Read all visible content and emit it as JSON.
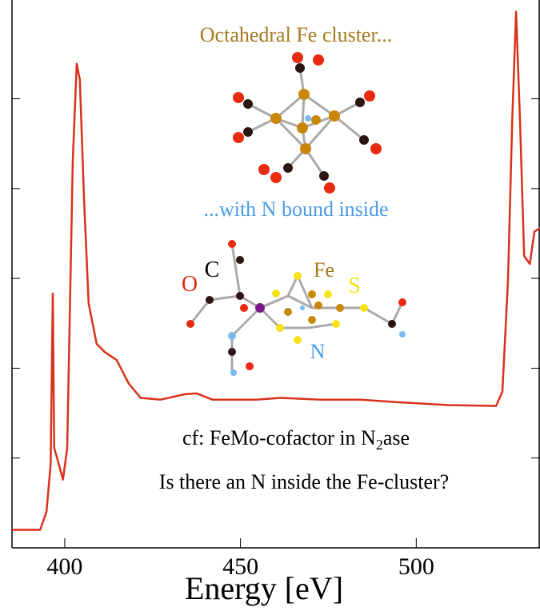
{
  "chart_data": {
    "type": "line",
    "xlabel": "Energy [eV]",
    "x": [
      385,
      393,
      394.8,
      396,
      396.6,
      397.0,
      397.7,
      399.5,
      400.7,
      402.3,
      403.4,
      404.3,
      405.5,
      406.8,
      409.1,
      411.4,
      414.8,
      418.2,
      421.6,
      427.3,
      434.1,
      437.5,
      442.0,
      454.5,
      461.4,
      472.7,
      484.1,
      495.5,
      509.1,
      522.7,
      524.5,
      526.1,
      527.3,
      528.4,
      529.5,
      530.7,
      532.3,
      533.6,
      535.2
    ],
    "series": [
      {
        "color": "#d8321a",
        "values": [
          0.2,
          0.2,
          0.4,
          0.93,
          2.83,
          1.11,
          1.02,
          0.76,
          1.11,
          4.32,
          5.39,
          5.21,
          3.87,
          2.72,
          2.27,
          2.18,
          2.09,
          1.83,
          1.67,
          1.65,
          1.71,
          1.72,
          1.65,
          1.65,
          1.67,
          1.65,
          1.65,
          1.62,
          1.59,
          1.58,
          1.74,
          2.98,
          4.76,
          5.97,
          4.76,
          3.25,
          3.16,
          3.52,
          3.56
        ]
      }
    ],
    "xlim": [
      385,
      535.2
    ],
    "xticks": [
      400,
      450,
      500
    ],
    "ylim": [
      0,
      6.1
    ],
    "yticks": [
      1,
      2,
      3,
      4,
      5
    ],
    "annotations": [
      {
        "text": "Octahedral Fe cluster...",
        "color": "#a47a1c"
      },
      {
        "text": "...with N bound inside",
        "color": "#4a9be6"
      },
      {
        "text": "cf: FeMo-cofactor in N",
        "subscript": "2",
        "suffix": "ase",
        "color": "#000000"
      },
      {
        "text": "Is there an N inside the Fe-cluster?",
        "color": "#000000"
      },
      {
        "text": "O",
        "color": "#e02a10"
      },
      {
        "text": "C",
        "color": "#000000"
      },
      {
        "text": "Fe",
        "color": "#a47a1c"
      },
      {
        "text": "S",
        "color": "#f5e21a"
      },
      {
        "text": "N",
        "color": "#4a9be6"
      }
    ]
  }
}
